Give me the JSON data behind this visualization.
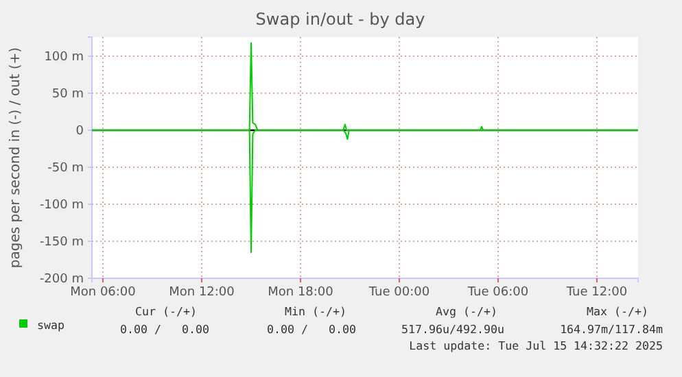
{
  "chart_data": {
    "type": "line",
    "title": "Swap in/out - by day",
    "ylabel": "pages per second in (-) / out (+)",
    "xlim": [
      "2025-07-14T05:20",
      "2025-07-15T14:30"
    ],
    "xticks": [
      {
        "value": "2025-07-14T06:00",
        "label": "Mon 06:00"
      },
      {
        "value": "2025-07-14T12:00",
        "label": "Mon 12:00"
      },
      {
        "value": "2025-07-14T18:00",
        "label": "Mon 18:00"
      },
      {
        "value": "2025-07-15T00:00",
        "label": "Tue 00:00"
      },
      {
        "value": "2025-07-15T06:00",
        "label": "Tue 06:00"
      },
      {
        "value": "2025-07-15T12:00",
        "label": "Tue 12:00"
      }
    ],
    "ylim": [
      -200,
      126
    ],
    "yticks": [
      {
        "value": -200,
        "label": "-200 m"
      },
      {
        "value": -150,
        "label": "-150 m"
      },
      {
        "value": -100,
        "label": "-100 m"
      },
      {
        "value": -50,
        "label": "-50 m"
      },
      0,
      {
        "value": 50,
        "label": "50 m"
      },
      {
        "value": 100,
        "label": "100 m"
      }
    ],
    "grid": true,
    "legend": "bottom",
    "line_style": "solid",
    "marker": "none",
    "ref_lines": [
      {
        "axis": "y",
        "value": 0,
        "color": "#000000"
      }
    ],
    "series": [
      {
        "name": "swap",
        "color": "#00cc00",
        "x": [
          "2025-07-14T05:20",
          "2025-07-14T14:54",
          "2025-07-14T15:00",
          "2025-07-14T15:06",
          "2025-07-14T15:15",
          "2025-07-14T15:24",
          "2025-07-14T20:36",
          "2025-07-14T20:42",
          "2025-07-14T20:48",
          "2025-07-15T04:54",
          "2025-07-15T05:00",
          "2025-07-15T05:06",
          "2025-07-15T14:30"
        ],
        "values": [
          0,
          0,
          118,
          10,
          8,
          0,
          0,
          8,
          0,
          0,
          5,
          0,
          0
        ]
      },
      {
        "color": "#00cc00",
        "x": [
          "2025-07-14T05:20",
          "2025-07-14T14:54",
          "2025-07-14T15:00",
          "2025-07-14T15:06",
          "2025-07-14T15:15",
          "2025-07-14T20:36",
          "2025-07-14T20:45",
          "2025-07-14T20:51",
          "2025-07-14T20:57",
          "2025-07-15T14:30"
        ],
        "values": [
          0,
          0,
          -165,
          -5,
          0,
          0,
          -4,
          -12,
          0,
          0
        ]
      }
    ],
    "annotations": [
      "Cur (-/+)",
      "Min (-/+)",
      "Avg (-/+)",
      "Max (-/+)",
      "0.00 /   0.00",
      "0.00 /   0.00",
      "517.96u/492.90u",
      "164.97m/117.84m",
      "Last update: Tue Jul 15 14:32:22 2025"
    ]
  }
}
